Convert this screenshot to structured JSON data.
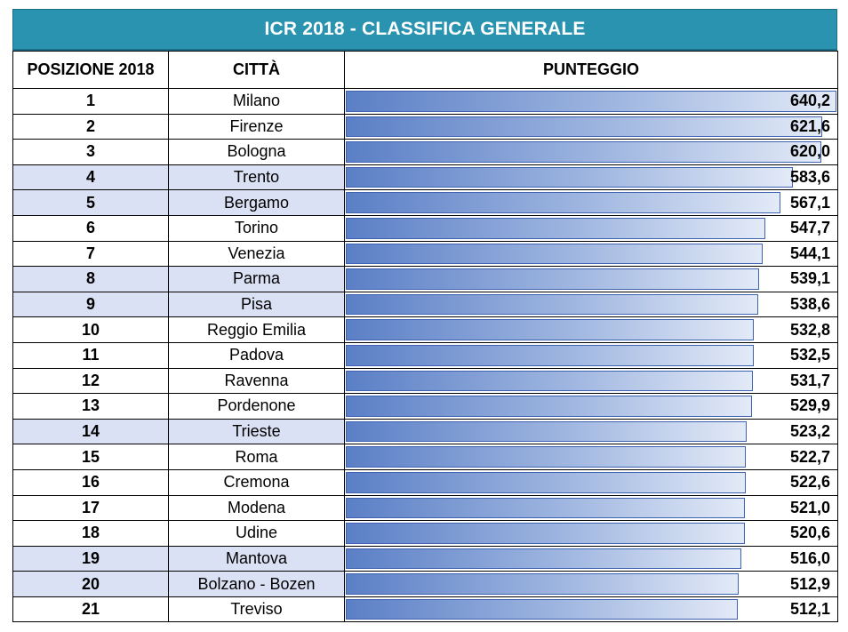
{
  "title": "ICR 2018 - CLASSIFICA GENERALE",
  "headers": {
    "position": "POSIZIONE 2018",
    "city": "CITTÀ",
    "score": "PUNTEGGIO"
  },
  "colors": {
    "title_bg": "#2a93b0",
    "row_shade": "#dbe1f4",
    "bar_start": "#5b7fc6",
    "bar_end": "#e3eaf7"
  },
  "scale_max": 640.2,
  "rows": [
    {
      "pos": "1",
      "city": "Milano",
      "score": "640,2",
      "value": 640.2,
      "shade": false
    },
    {
      "pos": "2",
      "city": "Firenze",
      "score": "621,6",
      "value": 621.6,
      "shade": false
    },
    {
      "pos": "3",
      "city": "Bologna",
      "score": "620,0",
      "value": 620.0,
      "shade": false
    },
    {
      "pos": "4",
      "city": "Trento",
      "score": "583,6",
      "value": 583.6,
      "shade": true
    },
    {
      "pos": "5",
      "city": "Bergamo",
      "score": "567,1",
      "value": 567.1,
      "shade": true
    },
    {
      "pos": "6",
      "city": "Torino",
      "score": "547,7",
      "value": 547.7,
      "shade": false
    },
    {
      "pos": "7",
      "city": "Venezia",
      "score": "544,1",
      "value": 544.1,
      "shade": false
    },
    {
      "pos": "8",
      "city": "Parma",
      "score": "539,1",
      "value": 539.1,
      "shade": true
    },
    {
      "pos": "9",
      "city": "Pisa",
      "score": "538,6",
      "value": 538.6,
      "shade": true
    },
    {
      "pos": "10",
      "city": "Reggio Emilia",
      "score": "532,8",
      "value": 532.8,
      "shade": false
    },
    {
      "pos": "11",
      "city": "Padova",
      "score": "532,5",
      "value": 532.5,
      "shade": false
    },
    {
      "pos": "12",
      "city": "Ravenna",
      "score": "531,7",
      "value": 531.7,
      "shade": false
    },
    {
      "pos": "13",
      "city": "Pordenone",
      "score": "529,9",
      "value": 529.9,
      "shade": false
    },
    {
      "pos": "14",
      "city": "Trieste",
      "score": "523,2",
      "value": 523.2,
      "shade": true
    },
    {
      "pos": "15",
      "city": "Roma",
      "score": "522,7",
      "value": 522.7,
      "shade": false
    },
    {
      "pos": "16",
      "city": "Cremona",
      "score": "522,6",
      "value": 522.6,
      "shade": false
    },
    {
      "pos": "17",
      "city": "Modena",
      "score": "521,0",
      "value": 521.0,
      "shade": false
    },
    {
      "pos": "18",
      "city": "Udine",
      "score": "520,6",
      "value": 520.6,
      "shade": false
    },
    {
      "pos": "19",
      "city": "Mantova",
      "score": "516,0",
      "value": 516.0,
      "shade": true
    },
    {
      "pos": "20",
      "city": "Bolzano - Bozen",
      "score": "512,9",
      "value": 512.9,
      "shade": true
    },
    {
      "pos": "21",
      "city": "Treviso",
      "score": "512,1",
      "value": 512.1,
      "shade": false
    }
  ]
}
